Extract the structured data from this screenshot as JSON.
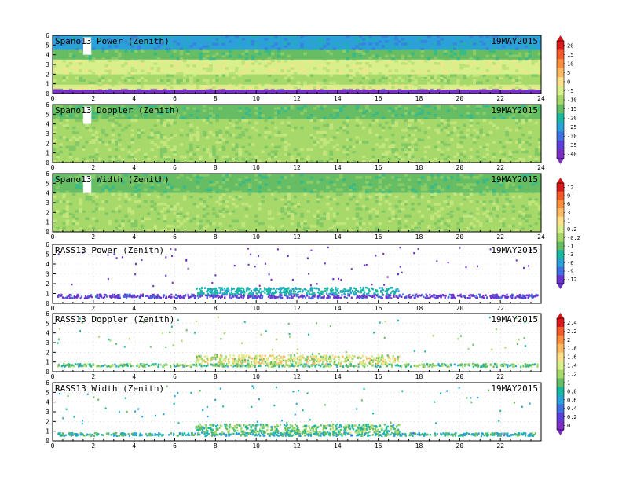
{
  "date_label": "19MAY2015",
  "colorbars": [
    {
      "id": "cb-power-doppler",
      "ticks": [
        "20",
        "15",
        "10",
        "5",
        "0",
        "-5",
        "-10",
        "-15",
        "-20",
        "-25",
        "-30",
        "-35",
        "-40"
      ],
      "colors": [
        "#d7191c",
        "#f45a2a",
        "#fb8d3c",
        "#fdb863",
        "#fee08b",
        "#d9ef8b",
        "#a6d96a",
        "#66bd63",
        "#1ab8a0",
        "#2ca0d8",
        "#3f70e0",
        "#5b3fd6",
        "#7b2fc2"
      ]
    },
    {
      "id": "cb-width-power",
      "ticks": [
        "12",
        "9",
        "6",
        "3",
        "1",
        "0.2",
        "-0.2",
        "-1",
        "-3",
        "-6",
        "-9",
        "-12"
      ],
      "colors": [
        "#d7191c",
        "#f45a2a",
        "#fb8d3c",
        "#fdb863",
        "#fee08b",
        "#d9ef8b",
        "#a6d96a",
        "#66bd63",
        "#1ab8a0",
        "#2ca0d8",
        "#3f70e0",
        "#6a34cc"
      ]
    },
    {
      "id": "cb-rass",
      "ticks": [
        "2.4",
        "2.2",
        "2",
        "1.8",
        "1.6",
        "1.4",
        "1.2",
        "1",
        "0.8",
        "0.6",
        "0.4",
        "0.2",
        "0"
      ],
      "colors": [
        "#d7191c",
        "#f45a2a",
        "#fb8d3c",
        "#fdb863",
        "#fee08b",
        "#d9ef8b",
        "#a6d96a",
        "#66bd63",
        "#1ab8a0",
        "#2ca0d8",
        "#3f70e0",
        "#5b3fd6",
        "#7b2fc2"
      ]
    }
  ],
  "chart_data": [
    {
      "type": "heatmap",
      "title": "Spano13 Power (Zenith)",
      "xlim": [
        0,
        24
      ],
      "ylim": [
        0,
        6
      ],
      "x_ticks": [
        "0",
        "2",
        "4",
        "6",
        "8",
        "10",
        "12",
        "14",
        "16",
        "18",
        "20",
        "22",
        "24"
      ],
      "y_ticks": [
        "0",
        "1",
        "2",
        "3",
        "4",
        "5",
        "6"
      ],
      "colorbar": "cb-power-doppler",
      "layers": [
        {
          "y0": 0.0,
          "y1": 0.4,
          "value": -40
        },
        {
          "y0": 0.4,
          "y1": 0.9,
          "value": -5
        },
        {
          "y0": 0.9,
          "y1": 2.0,
          "value": -10
        },
        {
          "y0": 2.0,
          "y1": 3.5,
          "value": -5
        },
        {
          "y0": 3.5,
          "y1": 4.5,
          "value": -15
        },
        {
          "y0": 4.5,
          "y1": 6.0,
          "value": -25
        }
      ],
      "gaps": [
        {
          "x0": 1.5,
          "x1": 1.9,
          "y0": 4.0,
          "y1": 5.8
        }
      ]
    },
    {
      "type": "heatmap",
      "title": "Spano13 Doppler (Zenith)",
      "xlim": [
        0,
        24
      ],
      "ylim": [
        0,
        6
      ],
      "x_ticks": [
        "0",
        "2",
        "4",
        "6",
        "8",
        "10",
        "12",
        "14",
        "16",
        "18",
        "20",
        "22",
        "24"
      ],
      "y_ticks": [
        "0",
        "1",
        "2",
        "3",
        "4",
        "5",
        "6"
      ],
      "colorbar": "cb-power-doppler",
      "layers": [
        {
          "y0": 0.0,
          "y1": 1.5,
          "value": -10
        },
        {
          "y0": 1.5,
          "y1": 4.5,
          "value": -10
        },
        {
          "y0": 4.5,
          "y1": 6.0,
          "value": -15
        }
      ],
      "gaps": [
        {
          "x0": 1.5,
          "x1": 1.9,
          "y0": 4.0,
          "y1": 5.8
        }
      ]
    },
    {
      "type": "heatmap",
      "title": "Spano13 Width (Zenith)",
      "xlim": [
        0,
        24
      ],
      "ylim": [
        0,
        6
      ],
      "x_ticks": [
        "0",
        "2",
        "4",
        "6",
        "8",
        "10",
        "12",
        "14",
        "16",
        "18",
        "20",
        "22",
        "24"
      ],
      "y_ticks": [
        "0",
        "1",
        "2",
        "3",
        "4",
        "5",
        "6"
      ],
      "colorbar": "cb-width-power",
      "layers": [
        {
          "y0": 0.0,
          "y1": 1.5,
          "value": -1
        },
        {
          "y0": 1.5,
          "y1": 4.0,
          "value": -1
        },
        {
          "y0": 4.0,
          "y1": 6.0,
          "value": -3
        }
      ],
      "gaps": [
        {
          "x0": 1.5,
          "x1": 1.9,
          "y0": 4.0,
          "y1": 5.8
        }
      ]
    },
    {
      "type": "scatter",
      "title": "RASS13 Power (Zenith)",
      "xlim": [
        0,
        24
      ],
      "ylim": [
        0,
        6
      ],
      "x_ticks": [
        "0",
        "2",
        "4",
        "6",
        "8",
        "10",
        "12",
        "14",
        "16",
        "18",
        "20",
        "22"
      ],
      "y_ticks": [
        "0",
        "1",
        "2",
        "3",
        "4",
        "5",
        "6"
      ],
      "colorbar": "cb-width-power",
      "bands": [
        {
          "x0": 0.2,
          "x1": 23.8,
          "y0": 0.6,
          "y1": 1.0,
          "value": -12
        },
        {
          "x0": 7.0,
          "x1": 17.0,
          "y0": 1.0,
          "y1": 1.7,
          "value": -6
        }
      ]
    },
    {
      "type": "scatter",
      "title": "RASS13 Doppler (Zenith)",
      "xlim": [
        0,
        24
      ],
      "ylim": [
        0,
        6
      ],
      "x_ticks": [
        "0",
        "2",
        "4",
        "6",
        "8",
        "10",
        "12",
        "14",
        "16",
        "18",
        "20",
        "22"
      ],
      "y_ticks": [
        "0",
        "1",
        "2",
        "3",
        "4",
        "5",
        "6"
      ],
      "colorbar": "cb-rass",
      "bands": [
        {
          "x0": 0.2,
          "x1": 23.8,
          "y0": 0.6,
          "y1": 0.9,
          "value": 1.0
        },
        {
          "x0": 7.0,
          "x1": 17.0,
          "y0": 0.9,
          "y1": 1.8,
          "value": 1.4
        }
      ]
    },
    {
      "type": "scatter",
      "title": "RASS13 Width (Zenith)",
      "xlim": [
        0,
        24
      ],
      "ylim": [
        0,
        6
      ],
      "x_ticks": [
        "0",
        "2",
        "4",
        "6",
        "8",
        "10",
        "12",
        "14",
        "16",
        "18",
        "20",
        "22"
      ],
      "y_ticks": [
        "0",
        "1",
        "2",
        "3",
        "4",
        "5",
        "6"
      ],
      "colorbar": "cb-rass",
      "bands": [
        {
          "x0": 0.2,
          "x1": 23.8,
          "y0": 0.6,
          "y1": 0.9,
          "value": 0.8
        },
        {
          "x0": 7.0,
          "x1": 17.0,
          "y0": 0.9,
          "y1": 1.8,
          "value": 1.0
        }
      ]
    }
  ]
}
